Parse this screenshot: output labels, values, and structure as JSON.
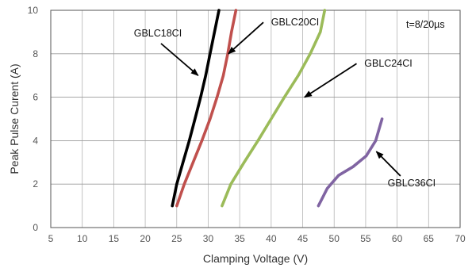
{
  "chart_data": {
    "type": "line",
    "title": "",
    "xlabel": "Clamping Voltage (V)",
    "ylabel": "Peak Pulse Curent (A)",
    "xlim": [
      5,
      70
    ],
    "ylim": [
      0,
      10
    ],
    "xticks": [
      5,
      10,
      15,
      20,
      25,
      30,
      35,
      40,
      45,
      50,
      55,
      60,
      65,
      70
    ],
    "yticks": [
      0,
      2,
      4,
      6,
      8,
      10
    ],
    "grid": true,
    "condition_label": "t=8/20µs",
    "series": [
      {
        "name": "GBLC18CI",
        "color": "#000000",
        "points": [
          [
            24.3,
            1.0
          ],
          [
            25.0,
            2.0
          ],
          [
            26.0,
            3.0
          ],
          [
            27.0,
            4.0
          ],
          [
            27.9,
            5.0
          ],
          [
            28.8,
            6.0
          ],
          [
            29.6,
            7.0
          ],
          [
            30.3,
            8.0
          ],
          [
            31.0,
            9.0
          ],
          [
            31.7,
            10.0
          ]
        ]
      },
      {
        "name": "GBLC20CI",
        "color": "#c0504d",
        "points": [
          [
            25.0,
            1.0
          ],
          [
            26.2,
            2.0
          ],
          [
            27.6,
            3.0
          ],
          [
            29.0,
            4.0
          ],
          [
            30.3,
            5.0
          ],
          [
            31.4,
            6.0
          ],
          [
            32.4,
            7.0
          ],
          [
            33.1,
            8.0
          ],
          [
            33.7,
            9.0
          ],
          [
            34.4,
            10.0
          ]
        ]
      },
      {
        "name": "GBLC24CI",
        "color": "#9bbb59",
        "points": [
          [
            32.2,
            1.0
          ],
          [
            33.6,
            2.0
          ],
          [
            35.7,
            3.0
          ],
          [
            37.9,
            4.0
          ],
          [
            40.0,
            5.0
          ],
          [
            42.1,
            6.0
          ],
          [
            44.3,
            7.0
          ],
          [
            46.2,
            8.0
          ],
          [
            47.8,
            9.0
          ],
          [
            48.5,
            10.0
          ]
        ]
      },
      {
        "name": "GBLC36CI",
        "color": "#8064a2",
        "points": [
          [
            47.5,
            1.0
          ],
          [
            48.9,
            1.8
          ],
          [
            50.7,
            2.4
          ],
          [
            53.0,
            2.8
          ],
          [
            55.1,
            3.3
          ],
          [
            56.6,
            4.0
          ],
          [
            57.6,
            5.0
          ]
        ]
      }
    ],
    "annotations": [
      {
        "text": "GBLC18CI",
        "series": 0,
        "label_at": [
          22.0,
          8.8
        ],
        "arrow_to": [
          28.4,
          7.0
        ]
      },
      {
        "text": "GBLC20CI",
        "series": 1,
        "label_at": [
          43.8,
          9.3
        ],
        "arrow_to": [
          33.2,
          8.0
        ]
      },
      {
        "text": "GBLC24CI",
        "series": 2,
        "label_at": [
          58.6,
          7.4
        ],
        "arrow_to": [
          45.3,
          6.0
        ]
      },
      {
        "text": "GBLC36CI",
        "series": 3,
        "label_at": [
          62.3,
          1.9
        ],
        "arrow_to": [
          56.7,
          3.5
        ]
      }
    ]
  }
}
